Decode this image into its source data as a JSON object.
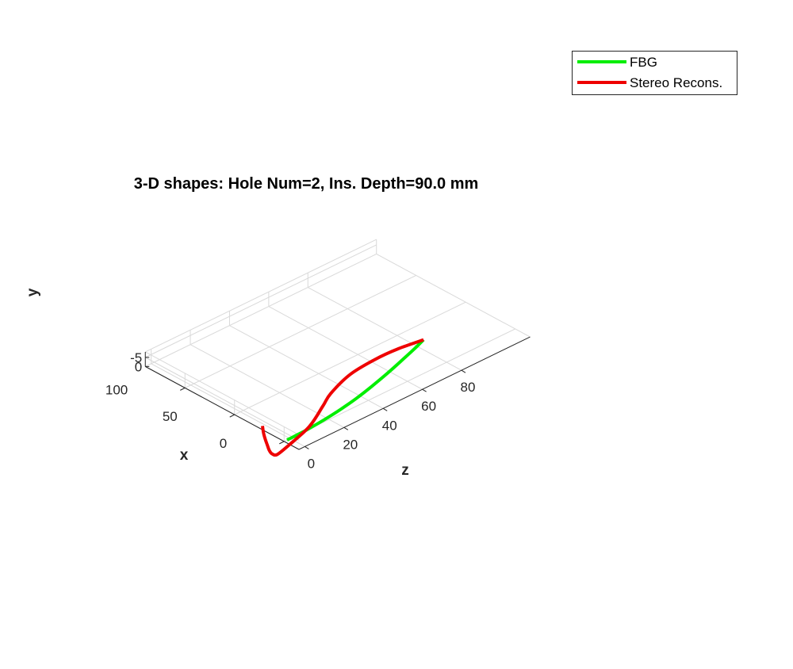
{
  "chart_data": {
    "type": "line3d",
    "title": "3-D shapes: Hole Num=2, Ins. Depth=90.0 mm",
    "xlabel": "z",
    "ylabel": "x",
    "zlabel": "y",
    "z_ticks": [
      "0",
      "20",
      "40",
      "60",
      "80"
    ],
    "x_ticks": [
      "0",
      "50",
      "100"
    ],
    "y_ticks": [
      "0",
      "-5"
    ],
    "legend_position": "top-right",
    "grid": true,
    "series": [
      {
        "name": "FBG",
        "color": "#00ee00",
        "points": [
          [
            -1.5,
            0,
            0
          ],
          [
            8,
            0.4,
            0
          ],
          [
            18,
            2.0,
            0
          ],
          [
            28,
            4.4,
            0
          ],
          [
            38,
            7.8,
            0
          ],
          [
            48,
            12.2,
            0
          ],
          [
            58,
            17.2,
            0
          ],
          [
            68,
            22.8,
            0
          ],
          [
            78,
            28.6,
            0
          ],
          [
            85,
            33.2,
            0
          ]
        ]
      },
      {
        "name": "Stereo Recons.",
        "color": "#ee0000",
        "points": [
          [
            -12,
            4,
            -12
          ],
          [
            -11.5,
            4,
            -8
          ],
          [
            -10.6,
            4,
            -4
          ],
          [
            -9.6,
            4,
            -0.5
          ],
          [
            -8.6,
            4,
            3
          ],
          [
            -7.4,
            3.5,
            5.5
          ],
          [
            -5,
            3,
            7
          ],
          [
            1,
            3,
            5
          ],
          [
            14,
            8,
            3
          ],
          [
            27,
            20,
            2
          ],
          [
            35,
            28,
            1.8
          ],
          [
            49,
            36,
            1
          ],
          [
            62,
            37,
            0
          ],
          [
            73,
            36,
            -0.3
          ],
          [
            85,
            33.2,
            0
          ]
        ]
      }
    ]
  }
}
